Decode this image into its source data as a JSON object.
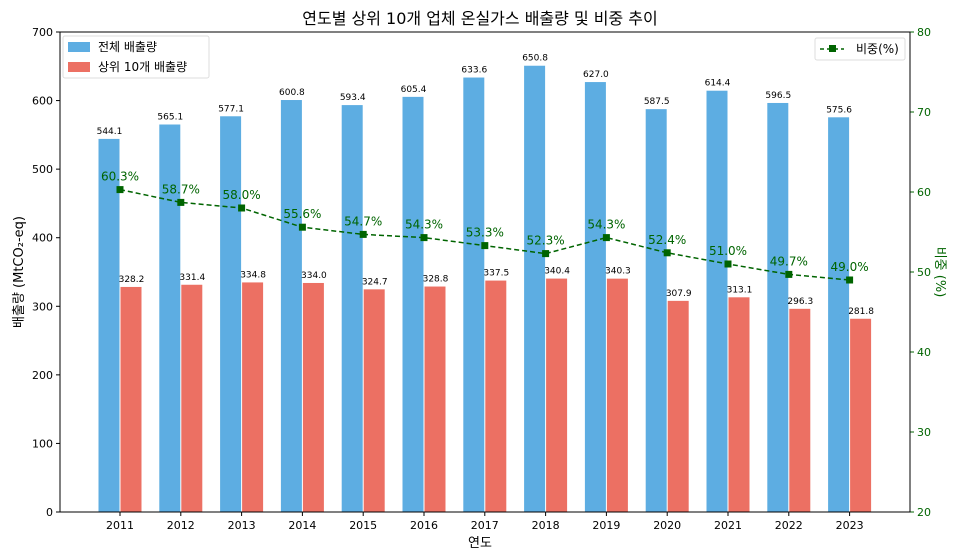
{
  "chart_data": {
    "type": "bar+line",
    "title": "연도별 상위 10개 업체 온실가스 배출량 및 비중 추이",
    "xlabel": "연도",
    "ylabel": "배출량 (MtCO₂-eq)",
    "y2label": "비중 (%)",
    "categories": [
      "2011",
      "2012",
      "2013",
      "2014",
      "2015",
      "2016",
      "2017",
      "2018",
      "2019",
      "2020",
      "2021",
      "2022",
      "2023"
    ],
    "ylim": [
      0,
      700
    ],
    "yticks": [
      0,
      100,
      200,
      300,
      400,
      500,
      600,
      700
    ],
    "y2lim": [
      20,
      80
    ],
    "y2ticks": [
      20,
      30,
      40,
      50,
      60,
      70,
      80
    ],
    "series": [
      {
        "name": "전체 배출량",
        "type": "bar",
        "color": "#5DADE2",
        "axis": "left",
        "values": [
          544.1,
          565.1,
          577.1,
          600.8,
          593.4,
          605.4,
          633.6,
          650.8,
          627.0,
          587.5,
          614.4,
          596.5,
          575.6
        ]
      },
      {
        "name": "상위 10개 배출량",
        "type": "bar",
        "color": "#EC7063",
        "axis": "left",
        "values": [
          328.2,
          331.4,
          334.8,
          334.0,
          324.7,
          328.8,
          337.5,
          340.4,
          340.3,
          307.9,
          313.1,
          296.3,
          281.8
        ]
      },
      {
        "name": "비중(%)",
        "type": "line",
        "color": "#006400",
        "axis": "right",
        "style": "dashed",
        "marker": "square",
        "values": [
          60.3,
          58.7,
          58.0,
          55.6,
          54.7,
          54.3,
          53.3,
          52.3,
          54.3,
          52.4,
          51.0,
          49.7,
          49.0
        ]
      }
    ],
    "legend_left": "top-left",
    "legend_right": "top-right",
    "grid": false
  }
}
